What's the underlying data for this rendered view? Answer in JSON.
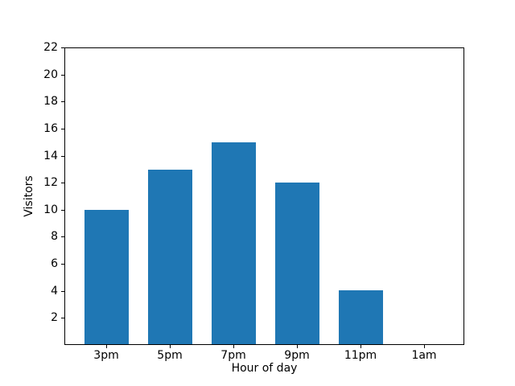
{
  "figure": {
    "background": "#ffffff",
    "text_color": "#000000"
  },
  "chart_data": {
    "type": "bar",
    "categories": [
      "3pm",
      "5pm",
      "7pm",
      "9pm",
      "11pm",
      "1am"
    ],
    "values": [
      10,
      13,
      15,
      12,
      4,
      0
    ],
    "title": "",
    "xlabel": "Hour of day",
    "ylabel": "Visitors",
    "ylim": [
      0,
      22
    ],
    "yticks": [
      2,
      4,
      6,
      8,
      10,
      12,
      14,
      16,
      18,
      20,
      22
    ],
    "bar_color": "#1f77b4",
    "grid": false,
    "legend": null
  }
}
